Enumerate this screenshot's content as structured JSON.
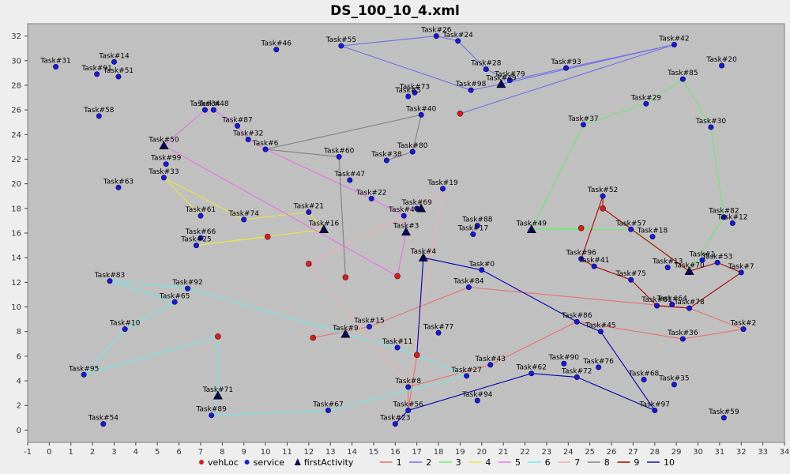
{
  "chart_data": {
    "type": "scatter",
    "title": "DS_100_10_4.xml",
    "xlabel": "",
    "ylabel": "",
    "xlim": [
      -1,
      34
    ],
    "ylim": [
      -1,
      33
    ],
    "x_ticks": [
      -1,
      0,
      1,
      2,
      3,
      4,
      5,
      6,
      7,
      8,
      9,
      10,
      11,
      12,
      13,
      14,
      15,
      16,
      17,
      18,
      19,
      20,
      21,
      22,
      23,
      24,
      25,
      26,
      27,
      28,
      29,
      30,
      31,
      32,
      33,
      34
    ],
    "y_ticks": [
      0,
      2,
      4,
      6,
      8,
      10,
      12,
      14,
      16,
      18,
      20,
      22,
      24,
      26,
      28,
      30,
      32
    ],
    "legend_position": "bottom",
    "marker_legend": [
      {
        "label": "vehLoc",
        "marker": "circle",
        "color": "#cc2222"
      },
      {
        "label": "service",
        "marker": "circle",
        "color": "#1a1acc"
      },
      {
        "label": "firstActivity",
        "marker": "triangle",
        "color": "#0a0a55"
      }
    ],
    "route_legend": [
      {
        "label": "1",
        "color": "#e87070"
      },
      {
        "label": "2",
        "color": "#7070e8"
      },
      {
        "label": "3",
        "color": "#70e870"
      },
      {
        "label": "4",
        "color": "#e8e840"
      },
      {
        "label": "5",
        "color": "#e870e8"
      },
      {
        "label": "6",
        "color": "#70e8e8"
      },
      {
        "label": "7",
        "color": "#f0b0b0"
      },
      {
        "label": "8",
        "color": "#808080"
      },
      {
        "label": "9",
        "color": "#b00000"
      },
      {
        "label": "10",
        "color": "#0000b0"
      }
    ],
    "services": [
      {
        "label": "Task#31",
        "x": 0.3,
        "y": 29.5
      },
      {
        "label": "Task#91",
        "x": 2.2,
        "y": 28.9
      },
      {
        "label": "Task#14",
        "x": 3.0,
        "y": 29.9
      },
      {
        "label": "Task#51",
        "x": 3.2,
        "y": 28.7
      },
      {
        "label": "Task#58",
        "x": 2.3,
        "y": 25.5
      },
      {
        "label": "Task#63",
        "x": 3.2,
        "y": 19.7
      },
      {
        "label": "Task#46",
        "x": 10.5,
        "y": 30.9
      },
      {
        "label": "Task#55",
        "x": 13.5,
        "y": 31.2
      },
      {
        "label": "Task#26",
        "x": 17.9,
        "y": 32.0
      },
      {
        "label": "Task#24",
        "x": 18.9,
        "y": 31.6
      },
      {
        "label": "Task#28",
        "x": 20.2,
        "y": 29.3
      },
      {
        "label": "Task#98",
        "x": 19.5,
        "y": 27.6
      },
      {
        "label": "Task#79",
        "x": 21.3,
        "y": 28.4
      },
      {
        "label": "Task#93",
        "x": 23.9,
        "y": 29.4
      },
      {
        "label": "Task#42",
        "x": 28.9,
        "y": 31.3
      },
      {
        "label": "Task#20",
        "x": 31.1,
        "y": 29.6
      },
      {
        "label": "Task#85",
        "x": 29.3,
        "y": 28.5
      },
      {
        "label": "Task#29",
        "x": 27.6,
        "y": 26.5
      },
      {
        "label": "Task#30",
        "x": 30.6,
        "y": 24.6
      },
      {
        "label": "Task#37",
        "x": 24.7,
        "y": 24.8
      },
      {
        "label": "Task#73",
        "x": 16.9,
        "y": 27.4
      },
      {
        "label": "Task#5",
        "x": 16.6,
        "y": 27.1
      },
      {
        "label": "Task#40",
        "x": 17.2,
        "y": 25.6
      },
      {
        "label": "Task#34",
        "x": 7.2,
        "y": 26.0
      },
      {
        "label": "Task#48",
        "x": 7.6,
        "y": 26.0
      },
      {
        "label": "Task#87",
        "x": 8.7,
        "y": 24.7
      },
      {
        "label": "Task#32",
        "x": 9.2,
        "y": 23.6
      },
      {
        "label": "Task#6",
        "x": 10.0,
        "y": 22.8
      },
      {
        "label": "Task#60",
        "x": 13.4,
        "y": 22.2
      },
      {
        "label": "Task#80",
        "x": 16.8,
        "y": 22.6
      },
      {
        "label": "Task#38",
        "x": 15.6,
        "y": 21.9
      },
      {
        "label": "Task#99",
        "x": 5.4,
        "y": 21.6
      },
      {
        "label": "Task#33",
        "x": 5.3,
        "y": 20.5
      },
      {
        "label": "Task#47",
        "x": 13.9,
        "y": 20.3
      },
      {
        "label": "Task#19",
        "x": 18.2,
        "y": 19.6
      },
      {
        "label": "Task#22",
        "x": 14.9,
        "y": 18.8
      },
      {
        "label": "Task#69",
        "x": 17.0,
        "y": 18.0
      },
      {
        "label": "Task#44",
        "x": 16.4,
        "y": 17.4
      },
      {
        "label": "Task#21",
        "x": 12.0,
        "y": 17.7
      },
      {
        "label": "Task#74",
        "x": 9.0,
        "y": 17.1
      },
      {
        "label": "Task#61",
        "x": 7.0,
        "y": 17.4
      },
      {
        "label": "Task#66",
        "x": 7.0,
        "y": 15.6
      },
      {
        "label": "Task#25",
        "x": 6.8,
        "y": 15.0
      },
      {
        "label": "Task#88",
        "x": 19.8,
        "y": 16.6
      },
      {
        "label": "Task#17",
        "x": 19.6,
        "y": 15.9
      },
      {
        "label": "Task#52",
        "x": 25.6,
        "y": 19.0
      },
      {
        "label": "Task#57",
        "x": 26.9,
        "y": 16.3
      },
      {
        "label": "Task#18",
        "x": 27.9,
        "y": 15.7
      },
      {
        "label": "Task#82",
        "x": 31.2,
        "y": 17.3
      },
      {
        "label": "Task#12",
        "x": 31.6,
        "y": 16.8
      },
      {
        "label": "Task#96",
        "x": 24.6,
        "y": 13.9
      },
      {
        "label": "Task#41",
        "x": 25.2,
        "y": 13.3
      },
      {
        "label": "Task#13",
        "x": 28.6,
        "y": 13.2
      },
      {
        "label": "Task#1",
        "x": 30.2,
        "y": 13.8
      },
      {
        "label": "Task#53",
        "x": 30.9,
        "y": 13.6
      },
      {
        "label": "Task#7",
        "x": 32.0,
        "y": 12.8
      },
      {
        "label": "Task#75",
        "x": 26.9,
        "y": 12.2
      },
      {
        "label": "Task#0",
        "x": 20.0,
        "y": 13.0
      },
      {
        "label": "Task#84",
        "x": 19.4,
        "y": 11.6
      },
      {
        "label": "Task#81",
        "x": 28.1,
        "y": 10.1
      },
      {
        "label": "Task#64",
        "x": 28.8,
        "y": 10.2
      },
      {
        "label": "Task#78",
        "x": 29.6,
        "y": 9.9
      },
      {
        "label": "Task#2",
        "x": 32.1,
        "y": 8.2
      },
      {
        "label": "Task#36",
        "x": 29.3,
        "y": 7.4
      },
      {
        "label": "Task#86",
        "x": 24.4,
        "y": 8.8
      },
      {
        "label": "Task#45",
        "x": 25.5,
        "y": 8.0
      },
      {
        "label": "Task#83",
        "x": 2.8,
        "y": 12.1
      },
      {
        "label": "Task#92",
        "x": 6.4,
        "y": 11.5
      },
      {
        "label": "Task#65",
        "x": 5.8,
        "y": 10.4
      },
      {
        "label": "Task#10",
        "x": 3.5,
        "y": 8.2
      },
      {
        "label": "Task#95",
        "x": 1.6,
        "y": 4.5
      },
      {
        "label": "Task#15",
        "x": 14.8,
        "y": 8.4
      },
      {
        "label": "Task#77",
        "x": 18.0,
        "y": 7.9
      },
      {
        "label": "Task#11",
        "x": 16.1,
        "y": 6.7
      },
      {
        "label": "Task#43",
        "x": 20.4,
        "y": 5.3
      },
      {
        "label": "Task#27",
        "x": 19.3,
        "y": 4.4
      },
      {
        "label": "Task#90",
        "x": 23.8,
        "y": 5.4
      },
      {
        "label": "Task#76",
        "x": 25.4,
        "y": 5.1
      },
      {
        "label": "Task#72",
        "x": 24.4,
        "y": 4.3
      },
      {
        "label": "Task#62",
        "x": 22.3,
        "y": 4.6
      },
      {
        "label": "Task#68",
        "x": 27.5,
        "y": 4.1
      },
      {
        "label": "Task#35",
        "x": 28.9,
        "y": 3.7
      },
      {
        "label": "Task#8",
        "x": 16.6,
        "y": 3.5
      },
      {
        "label": "Task#94",
        "x": 19.8,
        "y": 2.4
      },
      {
        "label": "Task#56",
        "x": 16.6,
        "y": 1.6
      },
      {
        "label": "Task#97",
        "x": 28.0,
        "y": 1.6
      },
      {
        "label": "Task#59",
        "x": 31.2,
        "y": 1.0
      },
      {
        "label": "Task#67",
        "x": 12.9,
        "y": 1.6
      },
      {
        "label": "Task#89",
        "x": 7.5,
        "y": 1.2
      },
      {
        "label": "Task#23",
        "x": 16.0,
        "y": 0.5
      },
      {
        "label": "Task#54",
        "x": 2.5,
        "y": 0.5
      }
    ],
    "first_activities": [
      {
        "label": "Task#49",
        "x": 20.9,
        "y": 28.1
      },
      {
        "label": "Task#50",
        "x": 5.3,
        "y": 23.1
      },
      {
        "label": "Task#16",
        "x": 12.7,
        "y": 16.3
      },
      {
        "label": "Task#3",
        "x": 16.5,
        "y": 16.1
      },
      {
        "label": "Task#4",
        "x": 17.3,
        "y": 14.0
      },
      {
        "label": "Task#49",
        "x": 22.3,
        "y": 16.3
      },
      {
        "label": "Task#70",
        "x": 29.6,
        "y": 12.9
      },
      {
        "label": "Task#9",
        "x": 13.7,
        "y": 7.8
      },
      {
        "label": "Task#71",
        "x": 7.8,
        "y": 2.8
      }
    ],
    "first_activity_extra": [
      {
        "label": "",
        "x": 17.2,
        "y": 18.0
      }
    ],
    "vehicle_locations": [
      {
        "x": 19.0,
        "y": 25.7
      },
      {
        "x": 25.6,
        "y": 18.0
      },
      {
        "x": 24.6,
        "y": 16.4
      },
      {
        "x": 10.1,
        "y": 15.7
      },
      {
        "x": 12.0,
        "y": 13.5
      },
      {
        "x": 13.7,
        "y": 12.4
      },
      {
        "x": 16.1,
        "y": 12.5
      },
      {
        "x": 12.2,
        "y": 7.5
      },
      {
        "x": 7.8,
        "y": 7.6
      },
      {
        "x": 17.0,
        "y": 6.1
      }
    ],
    "routes": [
      {
        "name": "1",
        "color": "#e87070",
        "path": [
          [
            12.2,
            7.5
          ],
          [
            14.8,
            8.4
          ],
          [
            19.4,
            11.6
          ],
          [
            29.6,
            9.9
          ],
          [
            32.1,
            8.2
          ],
          [
            29.3,
            7.4
          ],
          [
            24.4,
            8.8
          ],
          [
            20.4,
            5.3
          ],
          [
            16.6,
            3.5
          ],
          [
            16.6,
            1.6
          ],
          [
            17.0,
            6.1
          ]
        ]
      },
      {
        "name": "2",
        "color": "#7070e8",
        "path": [
          [
            19.0,
            25.7
          ],
          [
            28.9,
            31.3
          ],
          [
            20.9,
            28.1
          ],
          [
            19.5,
            27.6
          ],
          [
            13.5,
            31.2
          ],
          [
            17.9,
            32.0
          ],
          [
            18.9,
            31.6
          ],
          [
            20.2,
            29.3
          ],
          [
            21.3,
            28.4
          ],
          [
            23.9,
            29.4
          ],
          [
            28.9,
            31.3
          ]
        ]
      },
      {
        "name": "3",
        "color": "#70e870",
        "path": [
          [
            24.6,
            16.4
          ],
          [
            22.3,
            16.3
          ],
          [
            24.7,
            24.8
          ],
          [
            27.6,
            26.5
          ],
          [
            29.3,
            28.5
          ],
          [
            30.6,
            24.6
          ],
          [
            31.2,
            17.3
          ],
          [
            29.6,
            12.9
          ],
          [
            26.9,
            16.3
          ],
          [
            22.3,
            16.3
          ]
        ]
      },
      {
        "name": "4",
        "color": "#e8e840",
        "path": [
          [
            10.1,
            15.7
          ],
          [
            6.8,
            15.0
          ],
          [
            12.7,
            16.3
          ],
          [
            12.0,
            17.7
          ],
          [
            9.0,
            17.1
          ],
          [
            5.3,
            20.5
          ],
          [
            7.0,
            17.4
          ]
        ]
      },
      {
        "name": "5",
        "color": "#e870e8",
        "path": [
          [
            16.1,
            12.5
          ],
          [
            5.3,
            23.1
          ],
          [
            7.2,
            26.0
          ],
          [
            7.6,
            26.0
          ],
          [
            8.7,
            24.7
          ],
          [
            9.2,
            23.6
          ],
          [
            10.0,
            22.8
          ],
          [
            14.9,
            18.8
          ],
          [
            16.4,
            17.4
          ],
          [
            16.5,
            16.1
          ],
          [
            16.1,
            12.5
          ]
        ]
      },
      {
        "name": "6",
        "color": "#70e8e8",
        "path": [
          [
            7.8,
            7.6
          ],
          [
            1.6,
            4.5
          ],
          [
            3.5,
            8.2
          ],
          [
            5.8,
            10.4
          ],
          [
            2.8,
            12.1
          ],
          [
            6.4,
            11.5
          ],
          [
            13.7,
            7.8
          ],
          [
            16.1,
            6.7
          ],
          [
            19.3,
            4.4
          ],
          [
            12.9,
            1.6
          ],
          [
            7.5,
            1.2
          ],
          [
            7.8,
            2.8
          ],
          [
            7.8,
            7.6
          ]
        ]
      },
      {
        "name": "7",
        "color": "#f0b0b0",
        "path": [
          [
            12.0,
            13.5
          ],
          [
            16.6,
            3.5
          ],
          [
            18.2,
            19.6
          ],
          [
            16.4,
            17.4
          ],
          [
            12.0,
            13.5
          ]
        ]
      },
      {
        "name": "8",
        "color": "#808080",
        "path": [
          [
            13.7,
            12.4
          ],
          [
            13.4,
            22.2
          ],
          [
            10.0,
            22.8
          ],
          [
            17.2,
            25.6
          ],
          [
            16.8,
            22.6
          ],
          [
            15.6,
            21.9
          ]
        ]
      },
      {
        "name": "9",
        "color": "#b00000",
        "path": [
          [
            25.6,
            18.0
          ],
          [
            25.6,
            19.0
          ],
          [
            24.6,
            13.9
          ],
          [
            25.2,
            13.3
          ],
          [
            26.9,
            12.2
          ],
          [
            28.1,
            10.1
          ],
          [
            29.6,
            9.9
          ],
          [
            32.0,
            12.8
          ],
          [
            30.9,
            13.6
          ],
          [
            29.6,
            12.9
          ],
          [
            25.6,
            18.0
          ]
        ]
      },
      {
        "name": "10",
        "color": "#0000b0",
        "path": [
          [
            17.0,
            6.1
          ],
          [
            17.3,
            14.0
          ],
          [
            20.0,
            13.0
          ],
          [
            24.4,
            8.8
          ],
          [
            25.5,
            8.0
          ],
          [
            28.0,
            1.6
          ],
          [
            24.4,
            4.3
          ],
          [
            22.3,
            4.6
          ],
          [
            16.6,
            1.6
          ],
          [
            16.0,
            0.5
          ]
        ]
      }
    ]
  }
}
